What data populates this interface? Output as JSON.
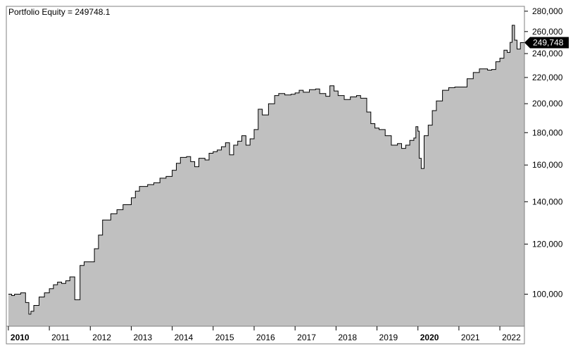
{
  "chart_data": {
    "type": "area",
    "title": "Portfolio Equity = 249748.1",
    "y_scale": "log",
    "ylim": [
      89000,
      285000
    ],
    "y_ticks": [
      100000,
      120000,
      140000,
      160000,
      180000,
      200000,
      220000,
      240000,
      260000,
      280000
    ],
    "y_tick_labels": [
      "100,000",
      "120,000",
      "140,000",
      "160,000",
      "180,000",
      "200,000",
      "220,000",
      "240,000",
      "260,000",
      "280,000"
    ],
    "x_range": [
      2009.95,
      2022.6
    ],
    "x_ticks": [
      2010,
      2011,
      2012,
      2013,
      2014,
      2015,
      2016,
      2017,
      2018,
      2019,
      2020,
      2021,
      2022
    ],
    "x_tick_labels": [
      "2010",
      "2011",
      "2012",
      "2013",
      "2014",
      "2015",
      "2016",
      "2017",
      "2018",
      "2019",
      "2020",
      "2021",
      "2022"
    ],
    "bold_x_ticks": [
      "2010",
      "2020"
    ],
    "last_value_label": "249,748",
    "fill_color": "#c0c0c0",
    "line_color": "#000000",
    "series": [
      {
        "x": [
          2010.0,
          2010.08,
          2010.15,
          2010.3,
          2010.42,
          2010.5,
          2010.55,
          2010.62,
          2010.75,
          2010.88,
          2011.0,
          2011.1,
          2011.2,
          2011.3,
          2011.4,
          2011.5,
          2011.62,
          2011.75,
          2011.85,
          2012.0,
          2012.1,
          2012.2,
          2012.3,
          2012.5,
          2012.65,
          2012.8,
          2013.0,
          2013.1,
          2013.2,
          2013.4,
          2013.55,
          2013.7,
          2013.85,
          2014.0,
          2014.1,
          2014.2,
          2014.35,
          2014.45,
          2014.55,
          2014.65,
          2014.8,
          2014.9,
          2015.0,
          2015.1,
          2015.2,
          2015.3,
          2015.4,
          2015.5,
          2015.6,
          2015.7,
          2015.8,
          2015.9,
          2016.0,
          2016.1,
          2016.2,
          2016.35,
          2016.5,
          2016.6,
          2016.75,
          2016.9,
          2017.0,
          2017.1,
          2017.2,
          2017.35,
          2017.5,
          2017.6,
          2017.75,
          2017.85,
          2017.95,
          2018.05,
          2018.2,
          2018.35,
          2018.5,
          2018.6,
          2018.75,
          2018.85,
          2018.95,
          2019.05,
          2019.2,
          2019.35,
          2019.5,
          2019.6,
          2019.7,
          2019.8,
          2019.9,
          2019.95,
          2020.0,
          2020.03,
          2020.08,
          2020.15,
          2020.25,
          2020.35,
          2020.45,
          2020.6,
          2020.75,
          2020.9,
          2021.0,
          2021.1,
          2021.2,
          2021.35,
          2021.5,
          2021.6,
          2021.7,
          2021.8,
          2021.9,
          2022.0,
          2022.1,
          2022.18,
          2022.25,
          2022.3,
          2022.36,
          2022.42,
          2022.5,
          2022.6
        ],
        "y": [
          100000,
          99500,
          100000,
          100500,
          97000,
          93000,
          94000,
          96000,
          99000,
          100500,
          102000,
          103500,
          104500,
          104000,
          105000,
          106500,
          98000,
          111000,
          112500,
          112500,
          118000,
          124000,
          131000,
          134000,
          136000,
          138500,
          142000,
          145500,
          148000,
          149000,
          150000,
          152500,
          153500,
          157000,
          161000,
          164500,
          165000,
          162000,
          159000,
          164000,
          163000,
          167000,
          168000,
          169000,
          171000,
          173500,
          166000,
          172000,
          174500,
          178000,
          172000,
          176000,
          182000,
          196000,
          192000,
          200000,
          206000,
          207500,
          206500,
          207000,
          208000,
          210000,
          208500,
          210500,
          211000,
          207500,
          205500,
          213500,
          209500,
          206000,
          203000,
          205000,
          206000,
          204000,
          194000,
          186000,
          183000,
          182000,
          178000,
          172000,
          173000,
          170000,
          172000,
          175000,
          176500,
          184000,
          181000,
          164000,
          158000,
          178000,
          185000,
          195000,
          202000,
          210000,
          212000,
          212500,
          212500,
          212500,
          219000,
          224000,
          227000,
          227000,
          226000,
          226500,
          233000,
          236000,
          243000,
          241000,
          250000,
          266000,
          252000,
          244000,
          249748,
          249748
        ]
      }
    ]
  }
}
